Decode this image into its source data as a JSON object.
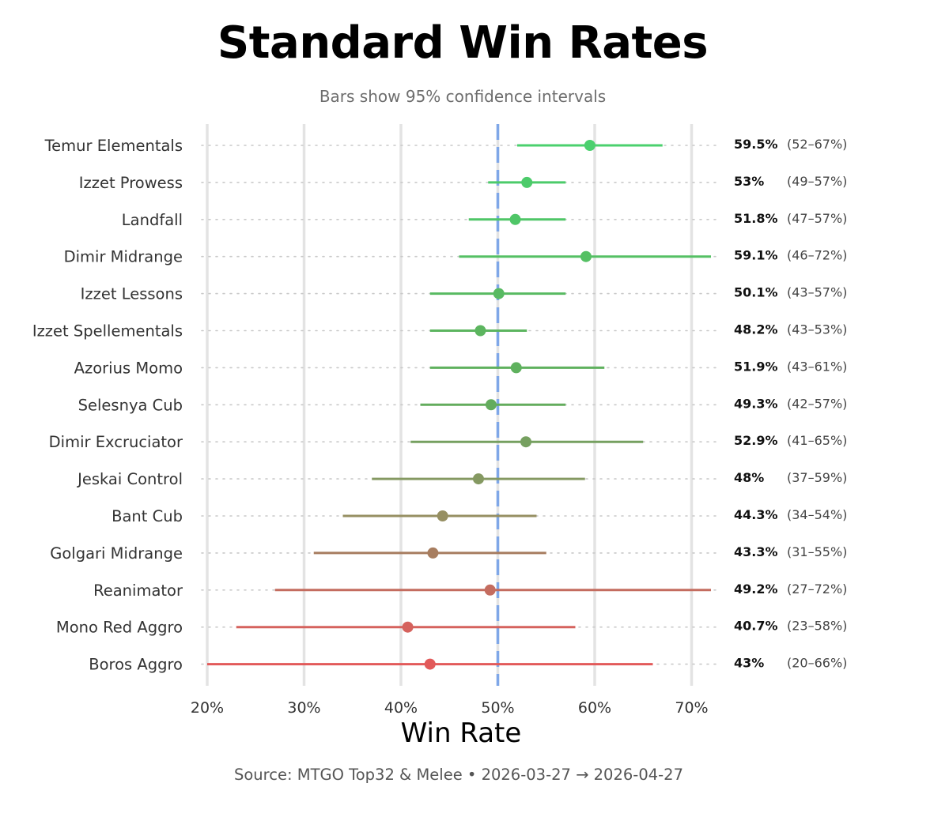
{
  "chart_data": {
    "type": "scatter",
    "title": "Standard Win Rates",
    "subtitle": "Bars show 95% confidence intervals",
    "xlabel": "Win Rate",
    "xlim": [
      20,
      72
    ],
    "x_ticks": [
      20,
      30,
      40,
      50,
      60,
      70
    ],
    "x_tick_labels": [
      "20%",
      "30%",
      "40%",
      "50%",
      "60%",
      "70%"
    ],
    "reference_line": 50,
    "reference_line_color": "#7fa7e8",
    "grid": true,
    "source": "Source: MTGO Top32 & Melee  •  2026-03-27 → 2026-04-27",
    "rows": [
      {
        "name": "Temur Elementals",
        "value": 59.5,
        "low": 52,
        "high": 67,
        "value_label": "59.5%",
        "ci_label": "(52–67%)",
        "color": "#4bd06e"
      },
      {
        "name": "Izzet Prowess",
        "value": 53,
        "low": 49,
        "high": 57,
        "value_label": "53%",
        "ci_label": "(49–57%)",
        "color": "#4ccb6a"
      },
      {
        "name": "Landfall",
        "value": 51.8,
        "low": 47,
        "high": 57,
        "value_label": "51.8%",
        "ci_label": "(47–57%)",
        "color": "#4fc667"
      },
      {
        "name": "Dimir Midrange",
        "value": 59.1,
        "low": 46,
        "high": 72,
        "value_label": "59.1%",
        "ci_label": "(46–72%)",
        "color": "#55c064"
      },
      {
        "name": "Izzet Lessons",
        "value": 50.1,
        "low": 43,
        "high": 57,
        "value_label": "50.1%",
        "ci_label": "(43–57%)",
        "color": "#58ba62"
      },
      {
        "name": "Izzet Spellementals",
        "value": 48.2,
        "low": 43,
        "high": 53,
        "value_label": "48.2%",
        "ci_label": "(43–53%)",
        "color": "#5cb55f"
      },
      {
        "name": "Azorius Momo",
        "value": 51.9,
        "low": 43,
        "high": 61,
        "value_label": "51.9%",
        "ci_label": "(43–61%)",
        "color": "#5fb15e"
      },
      {
        "name": "Selesnya Cub",
        "value": 49.3,
        "low": 42,
        "high": 57,
        "value_label": "49.3%",
        "ci_label": "(42–57%)",
        "color": "#63ac5d"
      },
      {
        "name": "Dimir Excruciator",
        "value": 52.9,
        "low": 41,
        "high": 65,
        "value_label": "52.9%",
        "ci_label": "(41–65%)",
        "color": "#76a060"
      },
      {
        "name": "Jeskai Control",
        "value": 48,
        "low": 37,
        "high": 59,
        "value_label": "48%",
        "ci_label": "(37–59%)",
        "color": "#859962"
      },
      {
        "name": "Bant Cub",
        "value": 44.3,
        "low": 34,
        "high": 54,
        "value_label": "44.3%",
        "ci_label": "(34–54%)",
        "color": "#968f62"
      },
      {
        "name": "Golgari Midrange",
        "value": 43.3,
        "low": 31,
        "high": 55,
        "value_label": "43.3%",
        "ci_label": "(31–55%)",
        "color": "#a77d5f"
      },
      {
        "name": "Reanimator",
        "value": 49.2,
        "low": 27,
        "high": 72,
        "value_label": "49.2%",
        "ci_label": "(27–72%)",
        "color": "#c46c5f"
      },
      {
        "name": "Mono Red Aggro",
        "value": 40.7,
        "low": 23,
        "high": 58,
        "value_label": "40.7%",
        "ci_label": "(23–58%)",
        "color": "#d5625d"
      },
      {
        "name": "Boros Aggro",
        "value": 43,
        "low": 20,
        "high": 66,
        "value_label": "43%",
        "ci_label": "(20–66%)",
        "color": "#e25a5a"
      }
    ]
  }
}
